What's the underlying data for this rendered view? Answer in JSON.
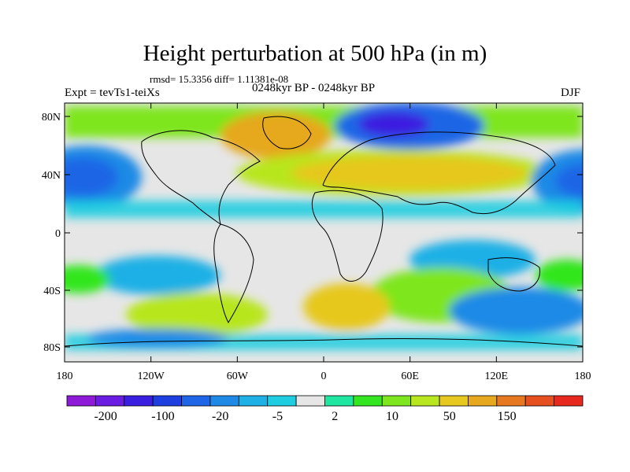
{
  "title": "Height perturbation at 500 hPa (in m)",
  "stats_text": "rmsd= 15.3356 diff= 1.11381e-08",
  "left_label": "Expt = tevTs1-teiXs",
  "center_label": "0248kyr BP - 0248kyr BP",
  "right_label": "DJF",
  "lat_labels": [
    "80N",
    "40N",
    "0",
    "40S",
    "80S"
  ],
  "lon_labels": [
    "180",
    "120W",
    "60W",
    "0",
    "60E",
    "120E",
    "180"
  ],
  "colorbar": {
    "colors": [
      "#8c1ad6",
      "#6a1de0",
      "#3a1fe0",
      "#1d3fe0",
      "#1f66e6",
      "#1f8ae6",
      "#1fb0e6",
      "#1fcde0",
      "#e6e6e6",
      "#1fe6a0",
      "#33e61f",
      "#7ee61f",
      "#b8e61f",
      "#e6c81f",
      "#e6a81f",
      "#e6781f",
      "#e6501f",
      "#e6281f"
    ],
    "labels": [
      "-200",
      "-100",
      "-20",
      "-5",
      "2",
      "10",
      "50",
      "150"
    ]
  },
  "map_colors": {
    "background": "#e6e6e6",
    "coast": "#000000",
    "contour_line": "#ffffff"
  }
}
